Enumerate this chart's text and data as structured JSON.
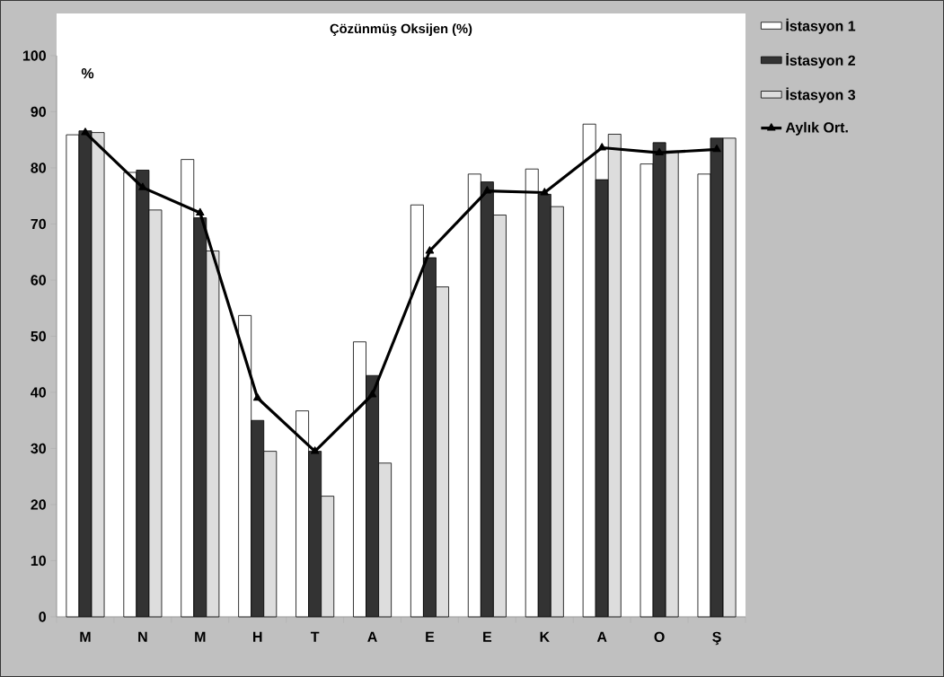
{
  "chart_data": {
    "type": "bar",
    "title": "Çözünmüş Oksijen (%)",
    "ylabel": "%",
    "categories": [
      "M",
      "N",
      "M",
      "H",
      "T",
      "A",
      "E",
      "E",
      "K",
      "A",
      "O",
      "Ş"
    ],
    "series": [
      {
        "name": "İstasyon 1",
        "color": "#ffffff",
        "values": [
          85.9,
          79.2,
          81.5,
          53.7,
          36.7,
          49.0,
          73.4,
          78.9,
          79.8,
          87.8,
          80.7,
          78.9
        ]
      },
      {
        "name": "İstasyon 2",
        "color": "#333333",
        "values": [
          86.6,
          79.6,
          71.1,
          35.0,
          29.5,
          43.0,
          64.0,
          77.5,
          75.3,
          77.9,
          84.5,
          85.3
        ]
      },
      {
        "name": "İstasyon 3",
        "color": "#dddddd",
        "values": [
          86.3,
          72.5,
          65.2,
          29.5,
          21.5,
          27.4,
          58.8,
          71.6,
          73.1,
          86.0,
          83.0,
          85.3
        ]
      },
      {
        "name": "Aylık Ort.",
        "type": "line",
        "color": "#000000",
        "values": [
          86.3,
          76.5,
          72.0,
          39.0,
          29.5,
          39.6,
          65.2,
          75.9,
          75.6,
          83.6,
          82.7,
          83.3
        ]
      }
    ],
    "ylim": [
      0,
      100
    ],
    "yticks": [
      0,
      10,
      20,
      30,
      40,
      50,
      60,
      70,
      80,
      90,
      100
    ],
    "legend": "top right",
    "marker": "triangle"
  }
}
